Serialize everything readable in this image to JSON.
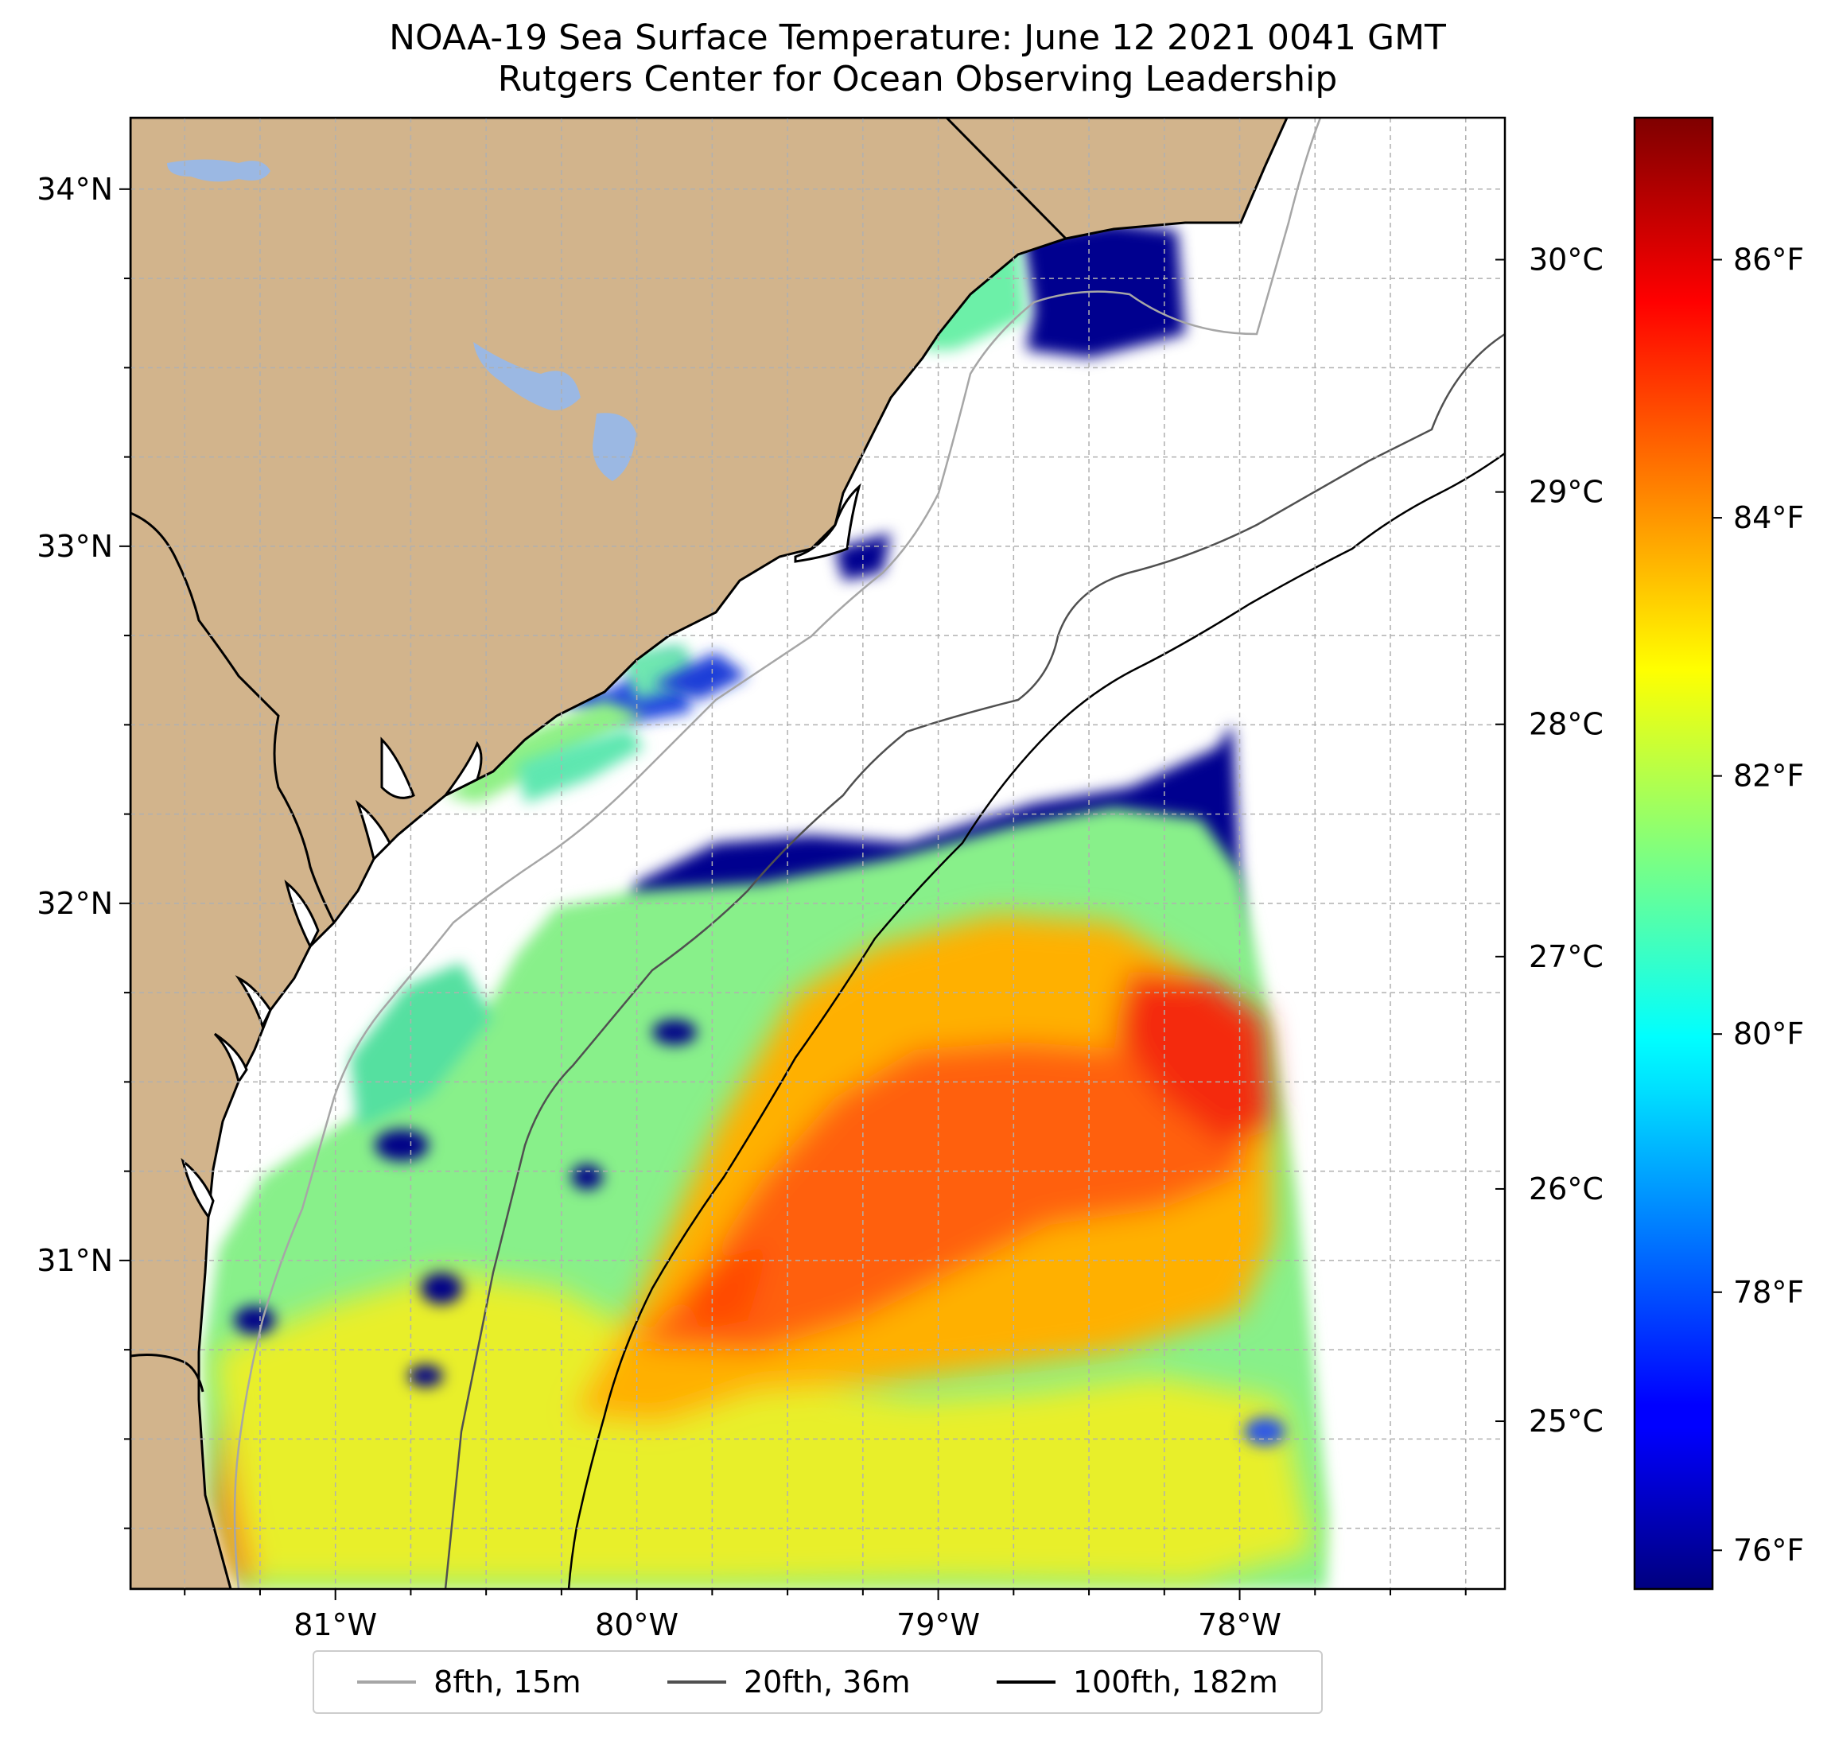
{
  "title": {
    "line1": "NOAA-19 Sea Surface Temperature: June 12 2021 0041 GMT",
    "line2": "Rutgers Center for Ocean Observing Leadership"
  },
  "map": {
    "lon_range": [
      -81.68,
      -77.12
    ],
    "lat_range": [
      30.08,
      34.2
    ],
    "lon_ticks": [
      {
        "value": -81,
        "label": "81°W"
      },
      {
        "value": -80,
        "label": "80°W"
      },
      {
        "value": -79,
        "label": "79°W"
      },
      {
        "value": -78,
        "label": "78°W"
      }
    ],
    "lat_ticks": [
      {
        "value": 31,
        "label": "31°N"
      },
      {
        "value": 32,
        "label": "32°N"
      },
      {
        "value": 33,
        "label": "33°N"
      },
      {
        "value": 34,
        "label": "34°N"
      }
    ],
    "gridlines": true,
    "land_color": "#d2b48c",
    "lake_color": "#9bb8e3",
    "coastline_color": "#000000",
    "colormap": "jet"
  },
  "colorbar": {
    "celsius_ticks": [
      {
        "value": 25,
        "label": "25°C"
      },
      {
        "value": 26,
        "label": "26°C"
      },
      {
        "value": 27,
        "label": "27°C"
      },
      {
        "value": 28,
        "label": "28°C"
      },
      {
        "value": 29,
        "label": "29°C"
      },
      {
        "value": 30,
        "label": "30°C"
      }
    ],
    "fahrenheit_ticks": [
      {
        "value": 76,
        "label": "76°F"
      },
      {
        "value": 78,
        "label": "78°F"
      },
      {
        "value": 80,
        "label": "80°F"
      },
      {
        "value": 82,
        "label": "82°F"
      },
      {
        "value": 84,
        "label": "84°F"
      },
      {
        "value": 86,
        "label": "86°F"
      }
    ],
    "fahrenheit_range": [
      75.7,
      87.1
    ]
  },
  "legend": {
    "items": [
      {
        "label": "8fth, 15m",
        "color": "#a6a6a6"
      },
      {
        "label": "20fth, 36m",
        "color": "#505050"
      },
      {
        "label": "100fth, 182m",
        "color": "#000000"
      }
    ]
  }
}
